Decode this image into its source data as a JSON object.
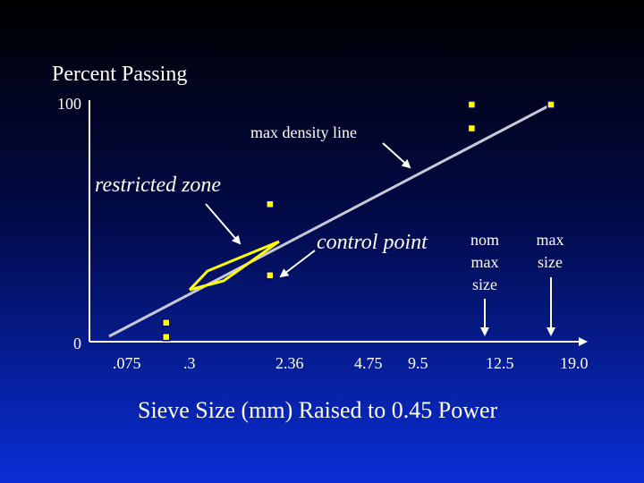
{
  "chart_data": {
    "type": "line",
    "title": "Percent Passing",
    "xlabel": "Sieve Size (mm) Raised to 0.45 Power",
    "ylabel": "",
    "y_ticks": [
      "100",
      "0"
    ],
    "ylim": [
      0,
      100
    ],
    "x_ticks": [
      ".075",
      ".3",
      "2.36",
      "4.75",
      "9.5",
      "12.5",
      "19.0"
    ],
    "grid": false,
    "series": [
      {
        "kind": "max_density_line",
        "x": [
          0,
          19.0
        ],
        "y": [
          0,
          100
        ]
      },
      {
        "kind": "control_points",
        "x": [
          0.075,
          0.075,
          2.36,
          2.36,
          12.5,
          12.5,
          19.0
        ],
        "y": [
          2,
          8,
          28,
          58,
          90,
          100,
          100
        ]
      },
      {
        "kind": "restricted_zone",
        "x_range": [
          0.3,
          2.36
        ]
      }
    ],
    "annotations": {
      "max_density_line": "max density line",
      "restricted_zone": "restricted zone",
      "control_point": "control point",
      "nom_max_size": [
        "nom",
        "max",
        "size"
      ],
      "max_size": [
        "max",
        "size"
      ]
    },
    "colors": {
      "line": "#c8c8d8",
      "control_point_fill": "#ffff00",
      "control_point_border": "#000080",
      "restricted_zone": "#ffff00",
      "text": "#ffffff"
    }
  }
}
